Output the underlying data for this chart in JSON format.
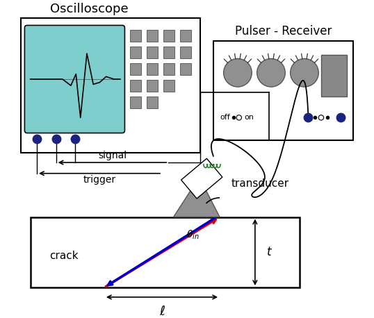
{
  "bg_color": "#ffffff",
  "osc_label": "Oscilloscope",
  "pr_label": "Pulser - Receiver",
  "signal_label": "signal",
  "trigger_label": "trigger",
  "transducer_label": "transducer",
  "crack_label": "crack",
  "t_label": "t",
  "l_label": "ℓ",
  "theta_label": "θ_{in}",
  "screen_color": "#7ecece",
  "btn_color": "#909090",
  "knob_color": "#909090",
  "dot_color": "#1a237e",
  "wedge_color": "#909090",
  "coil_color": "#2e7d32",
  "red_beam": "#dd0000",
  "blue_beam": "#0000cc"
}
